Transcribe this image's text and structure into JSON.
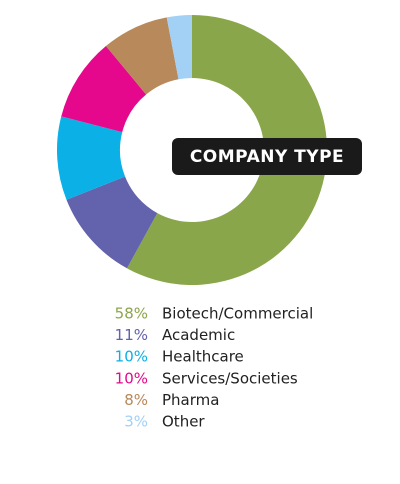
{
  "chart_data": {
    "type": "pie",
    "donut": true,
    "title": "COMPANY TYPE",
    "categories": [
      "Biotech/Commercial",
      "Academic",
      "Healthcare",
      "Services/Societies",
      "Pharma",
      "Other"
    ],
    "values": [
      58,
      11,
      10,
      10,
      8,
      3
    ],
    "value_labels": [
      "58%",
      "11%",
      "10%",
      "10%",
      "8%",
      "3%"
    ],
    "colors": [
      "#8aa64a",
      "#6262ad",
      "#0ab0e6",
      "#e5088c",
      "#b8895a",
      "#a3d0f5"
    ]
  }
}
